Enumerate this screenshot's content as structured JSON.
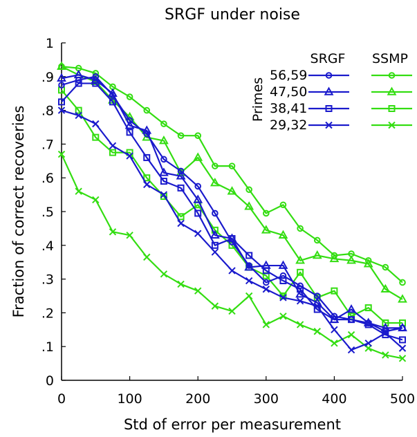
{
  "chart_data": {
    "type": "line",
    "title": "SRGF under noise",
    "xlabel": "Std of error per measurement",
    "ylabel": "Fraction of correct recoveries",
    "xlim": [
      0,
      500
    ],
    "ylim": [
      0,
      1
    ],
    "xticks": [
      0,
      100,
      200,
      300,
      400,
      500
    ],
    "xtick_labels": [
      "0",
      "100",
      "200",
      "300",
      "400",
      "500"
    ],
    "yticks": [
      0,
      0.1,
      0.2,
      0.3,
      0.4,
      0.5,
      0.6,
      0.7,
      0.8,
      0.9,
      1
    ],
    "ytick_labels": [
      "0",
      ".1",
      ".2",
      ".3",
      ".4",
      ".5",
      ".6",
      ".7",
      ".8",
      ".9",
      "1"
    ],
    "grid": false,
    "legend": {
      "placement": "top-right",
      "group_label": "Primes",
      "column_headers": [
        "SRGF",
        "SSMP"
      ],
      "rows": [
        "56,59",
        "47,50",
        "38,41",
        "29,32"
      ]
    },
    "colors": {
      "SRGF": "#1a1acc",
      "SSMP": "#33dd11"
    },
    "x": [
      0,
      25,
      50,
      75,
      100,
      125,
      150,
      175,
      200,
      225,
      250,
      275,
      300,
      325,
      350,
      375,
      400,
      425,
      450,
      475,
      500
    ],
    "series": [
      {
        "method": "SRGF",
        "primes": "56,59",
        "marker": "circle",
        "values": [
          0.875,
          0.89,
          0.9,
          0.845,
          0.77,
          0.73,
          0.655,
          0.62,
          0.575,
          0.495,
          0.41,
          0.34,
          0.29,
          0.31,
          0.28,
          0.25,
          0.19,
          0.18,
          0.17,
          0.145,
          0.155
        ]
      },
      {
        "method": "SRGF",
        "primes": "47,50",
        "marker": "triangle",
        "values": [
          0.895,
          0.905,
          0.89,
          0.85,
          0.755,
          0.74,
          0.615,
          0.605,
          0.535,
          0.43,
          0.42,
          0.335,
          0.34,
          0.34,
          0.255,
          0.23,
          0.18,
          0.21,
          0.17,
          0.155,
          0.155
        ]
      },
      {
        "method": "SRGF",
        "primes": "38,41",
        "marker": "square",
        "values": [
          0.825,
          0.88,
          0.88,
          0.825,
          0.735,
          0.66,
          0.59,
          0.57,
          0.495,
          0.4,
          0.42,
          0.37,
          0.325,
          0.295,
          0.27,
          0.21,
          0.18,
          0.18,
          0.165,
          0.135,
          0.12
        ]
      },
      {
        "method": "SRGF",
        "primes": "29,32",
        "marker": "cross",
        "values": [
          0.8,
          0.785,
          0.76,
          0.695,
          0.665,
          0.58,
          0.55,
          0.465,
          0.435,
          0.38,
          0.325,
          0.295,
          0.27,
          0.245,
          0.235,
          0.22,
          0.15,
          0.09,
          0.11,
          0.14,
          0.095
        ]
      },
      {
        "method": "SSMP",
        "primes": "56,59",
        "marker": "circle",
        "values": [
          0.93,
          0.925,
          0.91,
          0.87,
          0.84,
          0.8,
          0.76,
          0.725,
          0.725,
          0.635,
          0.635,
          0.565,
          0.495,
          0.52,
          0.45,
          0.415,
          0.37,
          0.375,
          0.355,
          0.335,
          0.29
        ]
      },
      {
        "method": "SSMP",
        "primes": "47,50",
        "marker": "triangle",
        "values": [
          0.93,
          0.905,
          0.885,
          0.83,
          0.78,
          0.72,
          0.71,
          0.615,
          0.66,
          0.585,
          0.56,
          0.515,
          0.445,
          0.43,
          0.355,
          0.37,
          0.36,
          0.355,
          0.345,
          0.27,
          0.24
        ]
      },
      {
        "method": "SSMP",
        "primes": "38,41",
        "marker": "square",
        "values": [
          0.86,
          0.8,
          0.72,
          0.675,
          0.675,
          0.6,
          0.545,
          0.485,
          0.52,
          0.445,
          0.4,
          0.335,
          0.31,
          0.25,
          0.32,
          0.245,
          0.265,
          0.19,
          0.215,
          0.17,
          0.17
        ]
      },
      {
        "method": "SSMP",
        "primes": "29,32",
        "marker": "cross",
        "values": [
          0.67,
          0.56,
          0.535,
          0.44,
          0.43,
          0.365,
          0.315,
          0.285,
          0.265,
          0.22,
          0.205,
          0.25,
          0.165,
          0.19,
          0.165,
          0.145,
          0.11,
          0.135,
          0.095,
          0.075,
          0.065
        ]
      }
    ]
  }
}
